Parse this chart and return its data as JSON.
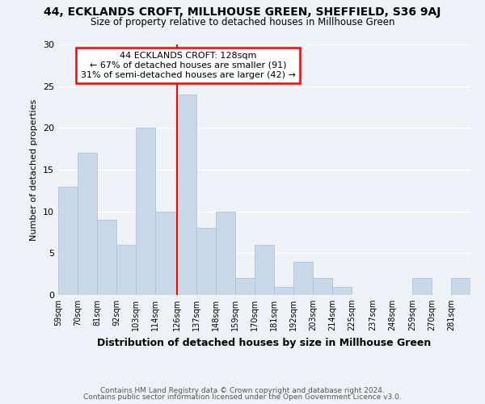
{
  "title1": "44, ECKLANDS CROFT, MILLHOUSE GREEN, SHEFFIELD, S36 9AJ",
  "title2": "Size of property relative to detached houses in Millhouse Green",
  "xlabel": "Distribution of detached houses by size in Millhouse Green",
  "ylabel": "Number of detached properties",
  "bar_color": "#c8d8e8",
  "bar_edge_color": "#a8bece",
  "vline_color": "red",
  "vline_x": 126,
  "bins": [
    59,
    70,
    81,
    92,
    103,
    114,
    126,
    137,
    148,
    159,
    170,
    181,
    192,
    203,
    214,
    225,
    237,
    248,
    259,
    270,
    281,
    292
  ],
  "heights": [
    13,
    17,
    9,
    6,
    20,
    10,
    24,
    8,
    10,
    2,
    6,
    1,
    4,
    2,
    1,
    0,
    0,
    0,
    2,
    0,
    2
  ],
  "tick_labels": [
    "59sqm",
    "70sqm",
    "81sqm",
    "92sqm",
    "103sqm",
    "114sqm",
    "126sqm",
    "137sqm",
    "148sqm",
    "159sqm",
    "170sqm",
    "181sqm",
    "192sqm",
    "203sqm",
    "214sqm",
    "225sqm",
    "237sqm",
    "248sqm",
    "259sqm",
    "270sqm",
    "281sqm"
  ],
  "annotation_title": "44 ECKLANDS CROFT: 128sqm",
  "annotation_line1": "← 67% of detached houses are smaller (91)",
  "annotation_line2": "31% of semi-detached houses are larger (42) →",
  "annotation_box_color": "white",
  "annotation_box_edge_color": "red",
  "ylim": [
    0,
    30
  ],
  "yticks": [
    0,
    5,
    10,
    15,
    20,
    25,
    30
  ],
  "footer1": "Contains HM Land Registry data © Crown copyright and database right 2024.",
  "footer2": "Contains public sector information licensed under the Open Government Licence v3.0.",
  "background_color": "#eef2f7"
}
